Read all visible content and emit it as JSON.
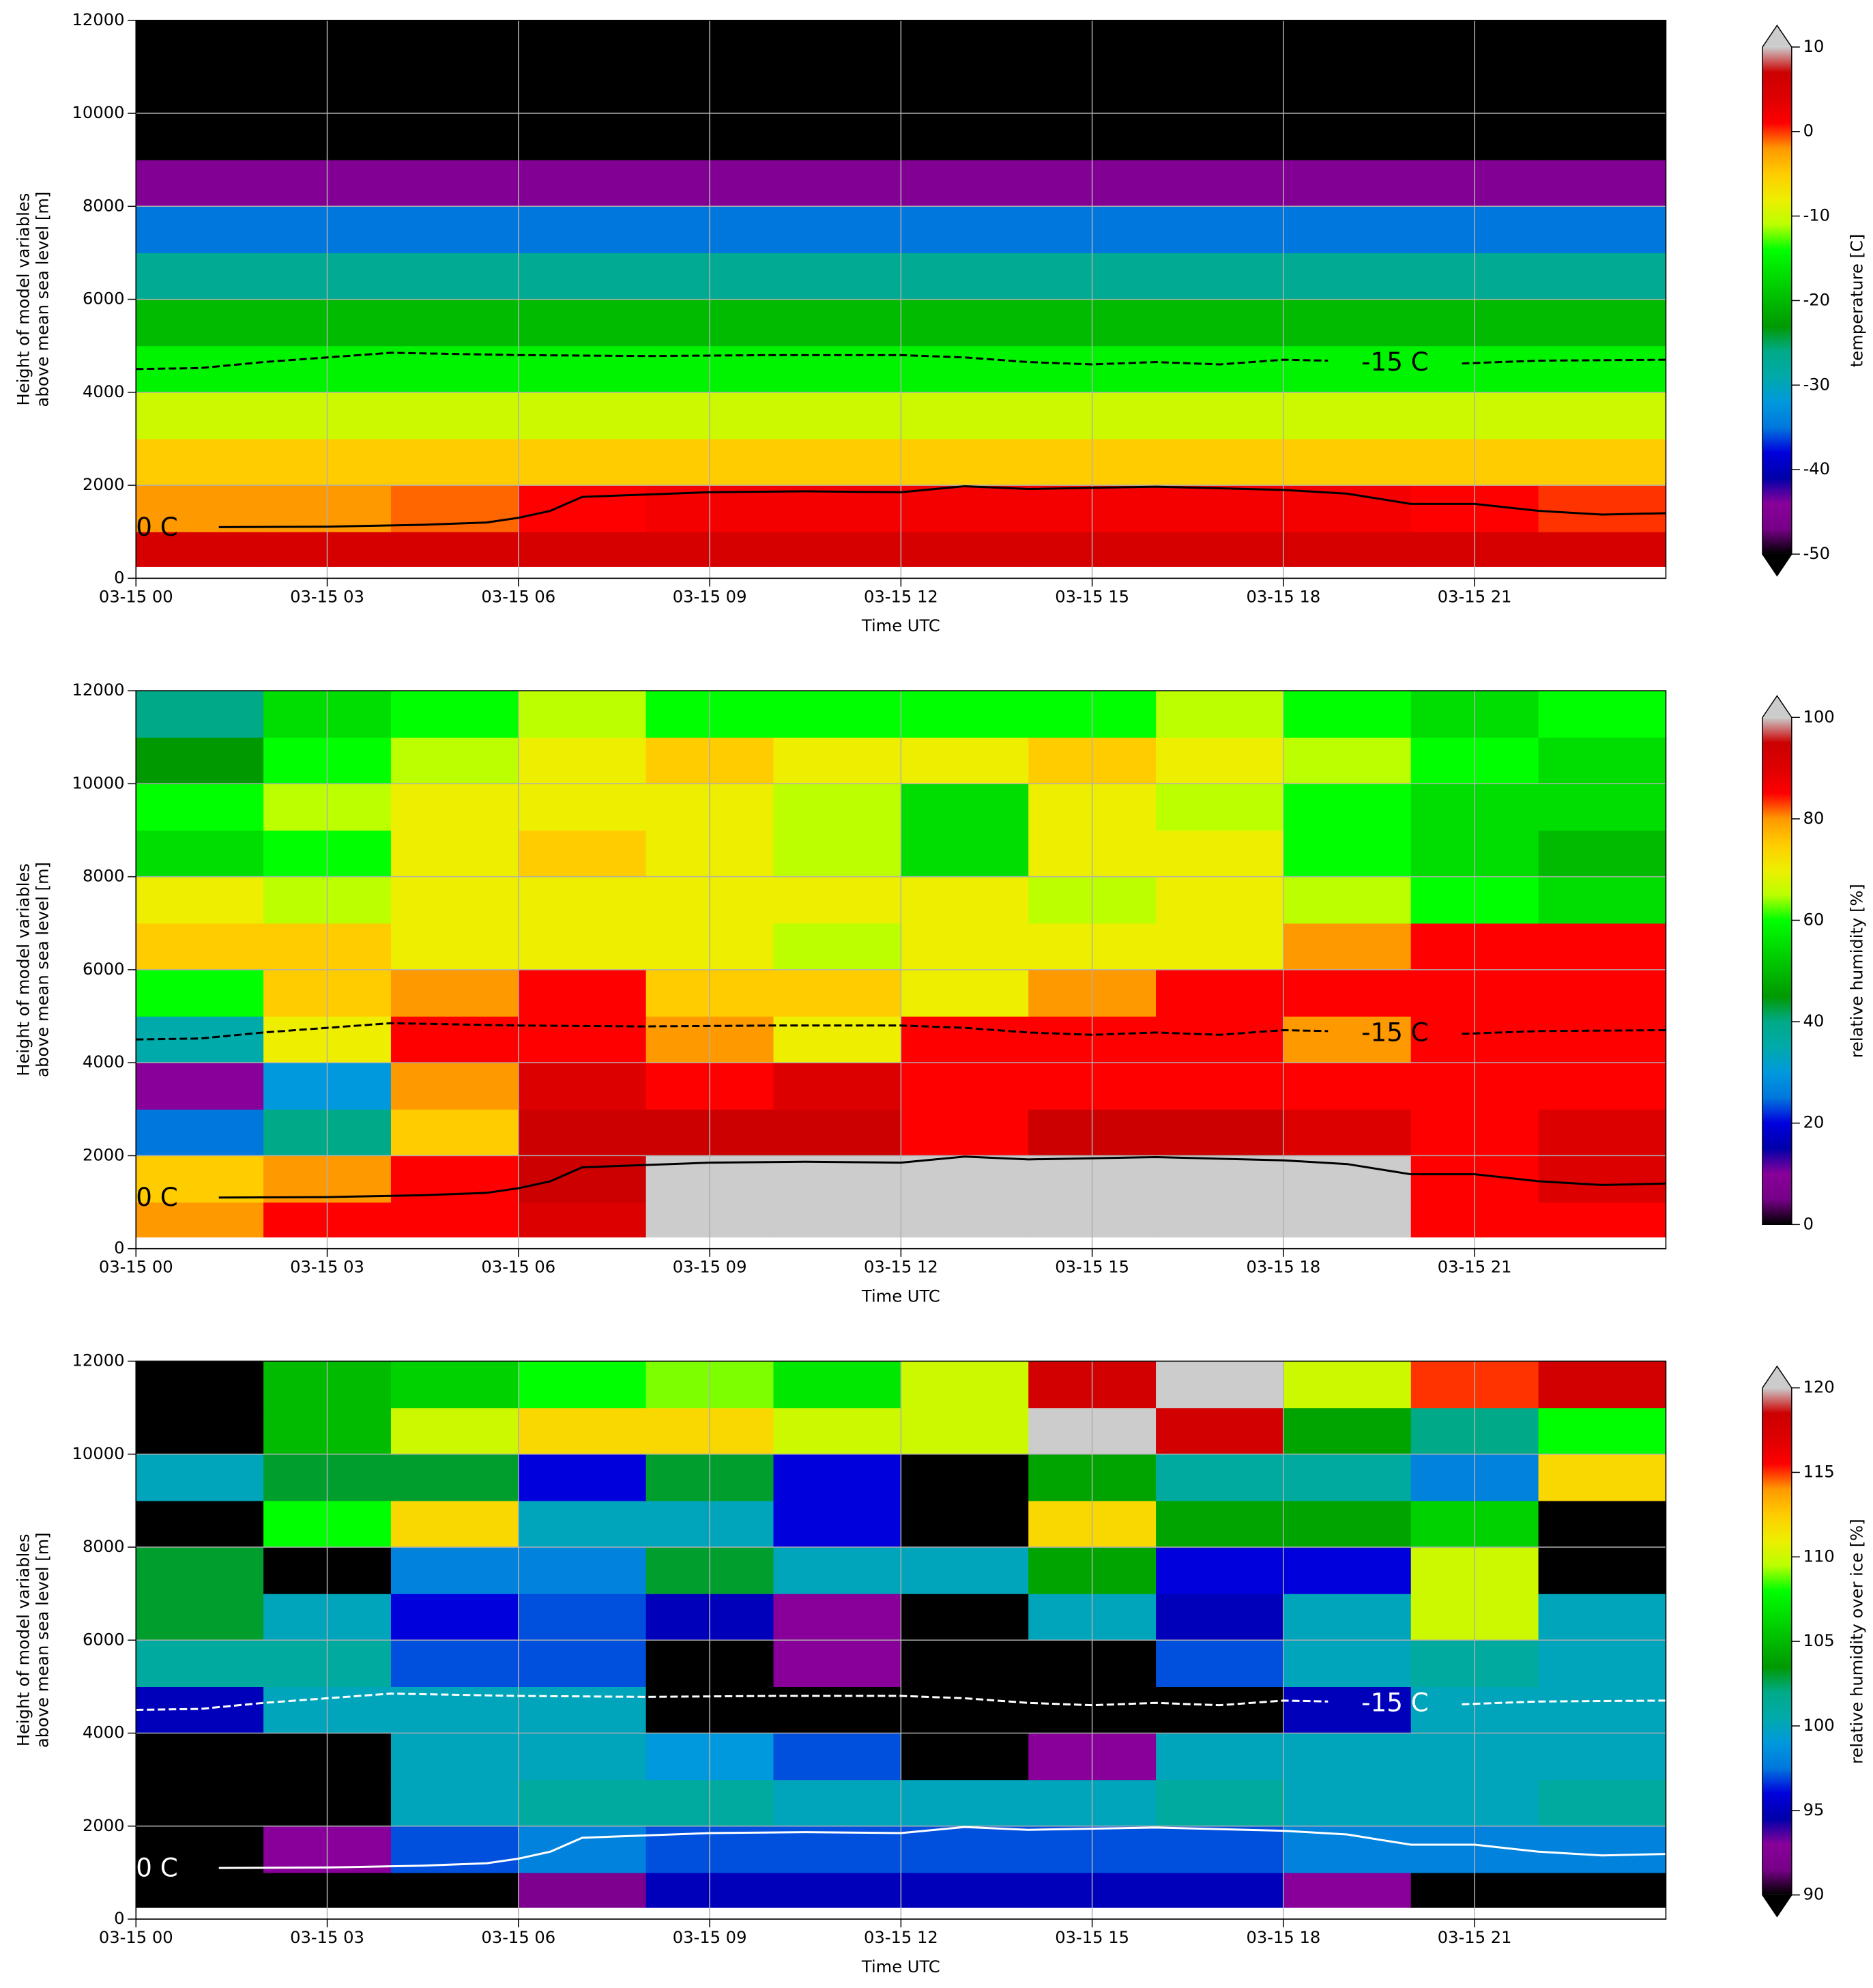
{
  "chart_data": [
    {
      "type": "heatmap",
      "xlabel": "Time UTC",
      "ylabel": [
        "Height of model variables",
        "above mean sea level [m]"
      ],
      "xlim": [
        0,
        24
      ],
      "xticks": [
        {
          "value": 0,
          "label": "03-15 00"
        },
        {
          "value": 3,
          "label": "03-15 03"
        },
        {
          "value": 6,
          "label": "03-15 06"
        },
        {
          "value": 9,
          "label": "03-15 09"
        },
        {
          "value": 12,
          "label": "03-15 12"
        },
        {
          "value": 15,
          "label": "03-15 15"
        },
        {
          "value": 18,
          "label": "03-15 18"
        },
        {
          "value": 21,
          "label": "03-15 21"
        }
      ],
      "ylim": [
        0,
        12000
      ],
      "yticks": [
        0,
        2000,
        4000,
        6000,
        8000,
        10000,
        12000
      ],
      "grid": true,
      "xbins": [
        0,
        2,
        4,
        6,
        8,
        10,
        12,
        14,
        16,
        18,
        20,
        22,
        24
      ],
      "ybins": [
        250,
        1000,
        2000,
        3000,
        4000,
        5000,
        6000,
        7000,
        8000,
        9000,
        10000,
        11000,
        12000
      ],
      "values": [
        [
          5,
          5,
          5,
          5,
          5,
          5,
          5,
          5,
          5,
          5,
          5,
          5
        ],
        [
          -2,
          -2,
          -1,
          1,
          2,
          2,
          2,
          2,
          2,
          2,
          1,
          0
        ],
        [
          -5,
          -5,
          -5,
          -5,
          -5,
          -5,
          -5,
          -5,
          -5,
          -5,
          -5,
          -5
        ],
        [
          -10,
          -10,
          -10,
          -10,
          -10,
          -10,
          -10,
          -10,
          -10,
          -10,
          -10,
          -10
        ],
        [
          -15,
          -15,
          -15,
          -15,
          -15,
          -15,
          -15,
          -15,
          -15,
          -15,
          -15,
          -15
        ],
        [
          -20,
          -20,
          -20,
          -20,
          -20,
          -20,
          -20,
          -20,
          -20,
          -20,
          -20,
          -20
        ],
        [
          -27,
          -27,
          -27,
          -27,
          -27,
          -27,
          -27,
          -27,
          -27,
          -27,
          -27,
          -27
        ],
        [
          -35,
          -35,
          -35,
          -35,
          -35,
          -35,
          -35,
          -35,
          -35,
          -35,
          -35,
          -35
        ],
        [
          -45,
          -45,
          -45,
          -45,
          -45,
          -45,
          -45,
          -45,
          -45,
          -45,
          -45,
          -45
        ],
        [
          -52,
          -52,
          -52,
          -52,
          -52,
          -52,
          -52,
          -52,
          -52,
          -52,
          -52,
          -52
        ],
        [
          -55,
          -55,
          -55,
          -55,
          -55,
          -55,
          -55,
          -55,
          -55,
          -55,
          -55,
          -55
        ],
        [
          -58,
          -58,
          -58,
          -58,
          -58,
          -58,
          -58,
          -58,
          -58,
          -58,
          -58,
          -58
        ]
      ],
      "colorbar": {
        "label": "temperature [C]",
        "lim": [
          -50,
          10
        ],
        "ticks": [
          -50,
          -40,
          -30,
          -20,
          -10,
          0,
          10
        ],
        "extend": "both"
      },
      "colormap": [
        "#000000",
        "#770088",
        "#880099",
        "#0000aa",
        "#0000dd",
        "#0077dd",
        "#0099dd",
        "#00aaaa",
        "#00aa88",
        "#009900",
        "#00bb00",
        "#00dd00",
        "#00ff00",
        "#bbff00",
        "#eeee00",
        "#ffcc00",
        "#ff9900",
        "#ff0000",
        "#dd0000",
        "#cc0000",
        "#cccccc"
      ],
      "contours": [
        {
          "label": "0 C",
          "color": "#000000",
          "dashed": false,
          "x": [
            1.3,
            3,
            4.5,
            5.5,
            6,
            6.5,
            7,
            9,
            10.5,
            12,
            13,
            14,
            16,
            18,
            19,
            20,
            21,
            22,
            23,
            24
          ],
          "y": [
            1100,
            1110,
            1150,
            1200,
            1300,
            1450,
            1750,
            1850,
            1870,
            1850,
            1980,
            1920,
            1970,
            1900,
            1820,
            1600,
            1600,
            1450,
            1370,
            1400
          ]
        },
        {
          "label": "-15 C",
          "color": "#000000",
          "dashed": true,
          "x": [
            0,
            1,
            2,
            3,
            4,
            6,
            8,
            10,
            12,
            13,
            14,
            15,
            16,
            17,
            18,
            18.7,
            null,
            20.8,
            22,
            24
          ],
          "y": [
            4500,
            4520,
            4650,
            4750,
            4850,
            4800,
            4780,
            4800,
            4800,
            4750,
            4650,
            4600,
            4650,
            4600,
            4700,
            4680,
            null,
            4620,
            4680,
            4700
          ]
        }
      ]
    },
    {
      "type": "heatmap",
      "xlabel": "Time UTC",
      "ylabel": [
        "Height of model variables",
        "above mean sea level [m]"
      ],
      "xlim": [
        0,
        24
      ],
      "xticks": [
        {
          "value": 0,
          "label": "03-15 00"
        },
        {
          "value": 3,
          "label": "03-15 03"
        },
        {
          "value": 6,
          "label": "03-15 06"
        },
        {
          "value": 9,
          "label": "03-15 09"
        },
        {
          "value": 12,
          "label": "03-15 12"
        },
        {
          "value": 15,
          "label": "03-15 15"
        },
        {
          "value": 18,
          "label": "03-15 18"
        },
        {
          "value": 21,
          "label": "03-15 21"
        }
      ],
      "ylim": [
        0,
        12000
      ],
      "yticks": [
        0,
        2000,
        4000,
        6000,
        8000,
        10000,
        12000
      ],
      "grid": true,
      "xbins": [
        0,
        2,
        4,
        6,
        8,
        10,
        12,
        14,
        16,
        18,
        20,
        22,
        24
      ],
      "ybins": [
        250,
        1000,
        2000,
        3000,
        4000,
        5000,
        6000,
        7000,
        8000,
        9000,
        10000,
        11000,
        12000
      ],
      "values": [
        [
          80,
          85,
          85,
          90,
          100,
          100,
          100,
          100,
          100,
          100,
          85,
          85
        ],
        [
          75,
          80,
          85,
          95,
          100,
          100,
          100,
          100,
          100,
          100,
          85,
          90
        ],
        [
          25,
          40,
          75,
          95,
          95,
          95,
          85,
          95,
          95,
          90,
          85,
          90
        ],
        [
          10,
          30,
          80,
          90,
          85,
          90,
          85,
          85,
          85,
          85,
          85,
          85
        ],
        [
          35,
          70,
          85,
          85,
          80,
          70,
          85,
          85,
          85,
          80,
          85,
          85
        ],
        [
          60,
          75,
          80,
          85,
          75,
          75,
          70,
          80,
          85,
          85,
          85,
          85
        ],
        [
          75,
          75,
          70,
          70,
          70,
          65,
          70,
          70,
          70,
          80,
          85,
          85
        ],
        [
          70,
          65,
          70,
          70,
          70,
          70,
          70,
          65,
          70,
          65,
          60,
          55
        ],
        [
          55,
          60,
          70,
          75,
          70,
          65,
          55,
          70,
          70,
          60,
          55,
          50
        ],
        [
          60,
          65,
          70,
          70,
          70,
          65,
          55,
          70,
          65,
          60,
          55,
          55
        ],
        [
          45,
          60,
          65,
          70,
          75,
          70,
          70,
          75,
          70,
          65,
          60,
          55
        ],
        [
          40,
          55,
          60,
          65,
          60,
          60,
          60,
          60,
          65,
          60,
          55,
          60
        ]
      ],
      "colorbar": {
        "label": "relative humidity [%]",
        "lim": [
          0,
          100
        ],
        "ticks": [
          0,
          20,
          40,
          60,
          80,
          100
        ],
        "extend": "max"
      },
      "colormap": [
        "#000000",
        "#770088",
        "#880099",
        "#0000aa",
        "#0000dd",
        "#0077dd",
        "#0099dd",
        "#00aaaa",
        "#00aa88",
        "#009900",
        "#00bb00",
        "#00dd00",
        "#00ff00",
        "#bbff00",
        "#eeee00",
        "#ffcc00",
        "#ff9900",
        "#ff0000",
        "#dd0000",
        "#cc0000",
        "#cccccc"
      ],
      "contours": [
        {
          "label": "0 C",
          "color": "#000000",
          "dashed": false,
          "x": [
            1.3,
            3,
            4.5,
            5.5,
            6,
            6.5,
            7,
            9,
            10.5,
            12,
            13,
            14,
            16,
            18,
            19,
            20,
            21,
            22,
            23,
            24
          ],
          "y": [
            1100,
            1110,
            1150,
            1200,
            1300,
            1450,
            1750,
            1850,
            1870,
            1850,
            1980,
            1920,
            1970,
            1900,
            1820,
            1600,
            1600,
            1450,
            1370,
            1400
          ]
        },
        {
          "label": "-15 C",
          "color": "#000000",
          "dashed": true,
          "x": [
            0,
            1,
            2,
            3,
            4,
            6,
            8,
            10,
            12,
            13,
            14,
            15,
            16,
            17,
            18,
            18.7,
            null,
            20.8,
            22,
            24
          ],
          "y": [
            4500,
            4520,
            4650,
            4750,
            4850,
            4800,
            4780,
            4800,
            4800,
            4750,
            4650,
            4600,
            4650,
            4600,
            4700,
            4680,
            null,
            4620,
            4680,
            4700
          ]
        }
      ]
    },
    {
      "type": "heatmap",
      "xlabel": "Time UTC",
      "ylabel": [
        "Height of model variables",
        "above mean sea level [m]"
      ],
      "xlim": [
        0,
        24
      ],
      "xticks": [
        {
          "value": 0,
          "label": "03-15 00"
        },
        {
          "value": 3,
          "label": "03-15 03"
        },
        {
          "value": 6,
          "label": "03-15 06"
        },
        {
          "value": 9,
          "label": "03-15 09"
        },
        {
          "value": 12,
          "label": "03-15 12"
        },
        {
          "value": 15,
          "label": "03-15 15"
        },
        {
          "value": 18,
          "label": "03-15 18"
        },
        {
          "value": 21,
          "label": "03-15 21"
        }
      ],
      "ylim": [
        0,
        12000
      ],
      "yticks": [
        0,
        2000,
        4000,
        6000,
        8000,
        10000,
        12000
      ],
      "grid": true,
      "xbins": [
        0,
        2,
        4,
        6,
        8,
        10,
        12,
        14,
        16,
        18,
        20,
        22,
        24
      ],
      "ybins": [
        250,
        1000,
        2000,
        3000,
        4000,
        5000,
        6000,
        7000,
        8000,
        9000,
        10000,
        11000,
        12000
      ],
      "values": [
        [
          89,
          89,
          89,
          92,
          95,
          95,
          95,
          95,
          95,
          93,
          89,
          89
        ],
        [
          89,
          93,
          97,
          98,
          97,
          97,
          97,
          97,
          97,
          98,
          98,
          98
        ],
        [
          89,
          89,
          100,
          101,
          101,
          100,
          100,
          100,
          101,
          100,
          100,
          101
        ],
        [
          89,
          89,
          100,
          100,
          99,
          97,
          89,
          93,
          100,
          100,
          100,
          100
        ],
        [
          95,
          100,
          100,
          100,
          89,
          89,
          89,
          89,
          89,
          95,
          100,
          100
        ],
        [
          101,
          101,
          97,
          97,
          89,
          93,
          89,
          89,
          97,
          100,
          101,
          100
        ],
        [
          103,
          100,
          96,
          97,
          95,
          93,
          89,
          100,
          95,
          100,
          110,
          100
        ],
        [
          103,
          89,
          98,
          98,
          103,
          100,
          100,
          104,
          96,
          96,
          110,
          89
        ],
        [
          89,
          108,
          112,
          100,
          100,
          96,
          89,
          112,
          104,
          104,
          106,
          89
        ],
        [
          100,
          103,
          103,
          96,
          103,
          96,
          89,
          104,
          101,
          101,
          98,
          112
        ],
        [
          89,
          105,
          110,
          112,
          112,
          110,
          110,
          120,
          118,
          104,
          102,
          108
        ],
        [
          89,
          105,
          106,
          108,
          109,
          107,
          110,
          118,
          121,
          110,
          115,
          118
        ]
      ],
      "colorbar": {
        "label": "relative humidity over ice [%]",
        "lim": [
          90,
          120
        ],
        "ticks": [
          90,
          95,
          100,
          105,
          110,
          115,
          120
        ],
        "extend": "both"
      },
      "colormap": [
        "#000000",
        "#770088",
        "#880099",
        "#0000aa",
        "#0000dd",
        "#0077dd",
        "#0099dd",
        "#00aaaa",
        "#00aa88",
        "#009900",
        "#00bb00",
        "#00dd00",
        "#00ff00",
        "#bbff00",
        "#eeee00",
        "#ffcc00",
        "#ff9900",
        "#ff0000",
        "#dd0000",
        "#cc0000",
        "#cccccc"
      ],
      "contours": [
        {
          "label": "0 C",
          "color": "#ffffff",
          "dashed": false,
          "x": [
            1.3,
            3,
            4.5,
            5.5,
            6,
            6.5,
            7,
            9,
            10.5,
            12,
            13,
            14,
            16,
            18,
            19,
            20,
            21,
            22,
            23,
            24
          ],
          "y": [
            1100,
            1110,
            1150,
            1200,
            1300,
            1450,
            1750,
            1850,
            1870,
            1850,
            1980,
            1920,
            1970,
            1900,
            1820,
            1600,
            1600,
            1450,
            1370,
            1400
          ]
        },
        {
          "label": "-15 C",
          "color": "#ffffff",
          "dashed": true,
          "x": [
            0,
            1,
            2,
            3,
            4,
            6,
            8,
            10,
            12,
            13,
            14,
            15,
            16,
            17,
            18,
            18.7,
            null,
            20.8,
            22,
            24
          ],
          "y": [
            4500,
            4520,
            4650,
            4750,
            4850,
            4800,
            4780,
            4800,
            4800,
            4750,
            4650,
            4600,
            4650,
            4600,
            4700,
            4680,
            null,
            4620,
            4680,
            4700
          ]
        }
      ]
    }
  ]
}
